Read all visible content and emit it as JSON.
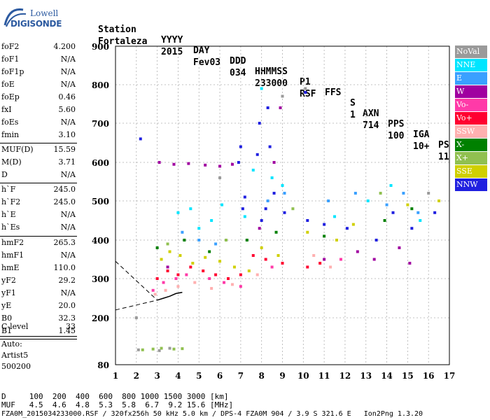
{
  "logo": {
    "line1": "Lowell",
    "line2": "DIGISONDE"
  },
  "header": {
    "labels": [
      {
        "text": "Station"
      },
      {
        "text": "YYYY"
      },
      {
        "text": "DAY"
      },
      {
        "text": "DDD"
      },
      {
        "text": "HHMMSS"
      },
      {
        "text": "P1"
      },
      {
        "text": "FFS"
      },
      {
        "text": "S"
      },
      {
        "text": "AXN"
      },
      {
        "text": "PPS"
      },
      {
        "text": "IGA"
      },
      {
        "text": "PS"
      }
    ],
    "values": [
      {
        "text": "Fortaleza"
      },
      {
        "text": "2015"
      },
      {
        "text": "Fev03"
      },
      {
        "text": "034"
      },
      {
        "text": "233000"
      },
      {
        "text": "RSF"
      },
      {
        "text": ""
      },
      {
        "text": "1"
      },
      {
        "text": "714"
      },
      {
        "text": "100"
      },
      {
        "text": "10+"
      },
      {
        "text": "11"
      }
    ]
  },
  "params": {
    "group1": [
      {
        "label": "foF2",
        "value": "4.200"
      },
      {
        "label": "foF1",
        "value": "N/A"
      },
      {
        "label": "foF1p",
        "value": "N/A"
      },
      {
        "label": "foE",
        "value": "N/A"
      },
      {
        "label": "foEp",
        "value": "0.46"
      },
      {
        "label": "fxI",
        "value": "5.60"
      },
      {
        "label": "foEs",
        "value": "N/A"
      },
      {
        "label": "fmin",
        "value": "3.10"
      }
    ],
    "group2": [
      {
        "label": "MUF(D)",
        "value": "15.59"
      },
      {
        "label": "M(D)",
        "value": "3.71"
      },
      {
        "label": "D",
        "value": "N/A"
      }
    ],
    "group3": [
      {
        "label": "h`F",
        "value": "245.0"
      },
      {
        "label": "h`F2",
        "value": "245.0"
      },
      {
        "label": "h`E",
        "value": "N/A"
      },
      {
        "label": "h`Es",
        "value": "N/A"
      }
    ],
    "group4": [
      {
        "label": "hmF2",
        "value": "265.3"
      },
      {
        "label": "hmF1",
        "value": "N/A"
      },
      {
        "label": "hmE",
        "value": "110.0"
      },
      {
        "label": "yF2",
        "value": "29.2"
      },
      {
        "label": "yF1",
        "value": "N/A"
      },
      {
        "label": "yE",
        "value": "20.0"
      },
      {
        "label": "B0",
        "value": "32.3"
      },
      {
        "label": "B1",
        "value": "1.45"
      }
    ],
    "group5": [
      {
        "label": "C-level",
        "value": "33"
      }
    ],
    "auto": {
      "line1": "Auto:",
      "line2": "Artist5",
      "line3": "500200"
    }
  },
  "legend": [
    {
      "label": "NoVal",
      "color": "#9a9a9a",
      "text_color": "#ffffff"
    },
    {
      "label": "NNE",
      "color": "#00e5ff",
      "text_color": "#ffffff"
    },
    {
      "label": "E",
      "color": "#3aa0ff",
      "text_color": "#ffffff"
    },
    {
      "label": "W",
      "color": "#a000a0",
      "text_color": "#ffffff"
    },
    {
      "label": "Vo-",
      "color": "#ff3aa8",
      "text_color": "#ffffff"
    },
    {
      "label": "Vo+",
      "color": "#ff0030",
      "text_color": "#ffffff"
    },
    {
      "label": "SSW",
      "color": "#ffb0b0",
      "text_color": "#ffffff"
    },
    {
      "label": "X-",
      "color": "#008000",
      "text_color": "#ffffff"
    },
    {
      "label": "X+",
      "color": "#90c050",
      "text_color": "#ffffff"
    },
    {
      "label": "SSE",
      "color": "#d0d000",
      "text_color": "#ffffff"
    },
    {
      "label": "NNW",
      "color": "#2020e0",
      "text_color": "#ffffff"
    }
  ],
  "chart_data": {
    "type": "scatter",
    "title": "",
    "xlabel": "",
    "ylabel": "",
    "x_ticks": [
      1,
      2,
      3,
      4,
      5,
      6,
      7,
      8,
      9,
      10,
      11,
      12,
      13,
      14,
      15,
      16,
      17
    ],
    "y_ticks": [
      80,
      200,
      300,
      400,
      500,
      600,
      700,
      800,
      900
    ],
    "xlim": [
      1,
      17
    ],
    "ylim": [
      80,
      900
    ],
    "grid": "dashed",
    "legend_position": "right",
    "series": [
      {
        "name": "NNW",
        "color": "#2020e0",
        "points": [
          [
            6.9,
            600
          ],
          [
            7.0,
            640
          ],
          [
            7.1,
            480
          ],
          [
            7.2,
            510
          ],
          [
            7.8,
            620
          ],
          [
            7.9,
            700
          ],
          [
            8.0,
            450
          ],
          [
            8.2,
            480
          ],
          [
            8.4,
            640
          ],
          [
            8.6,
            520
          ],
          [
            9.1,
            470
          ],
          [
            10.2,
            450
          ],
          [
            11.0,
            440
          ],
          [
            12.1,
            430
          ],
          [
            13.5,
            400
          ],
          [
            14.3,
            470
          ],
          [
            15.2,
            430
          ],
          [
            16.3,
            470
          ],
          [
            2.2,
            660
          ],
          [
            8.3,
            740
          ],
          [
            10.1,
            780
          ]
        ]
      },
      {
        "name": "W",
        "color": "#a000a0",
        "points": [
          [
            3.1,
            600
          ],
          [
            3.8,
            595
          ],
          [
            4.5,
            597
          ],
          [
            5.3,
            593
          ],
          [
            6.0,
            590
          ],
          [
            6.6,
            595
          ],
          [
            7.9,
            430
          ],
          [
            8.6,
            600
          ],
          [
            8.9,
            740
          ],
          [
            11.0,
            350
          ],
          [
            12.6,
            370
          ],
          [
            13.4,
            350
          ],
          [
            14.6,
            380
          ],
          [
            15.1,
            340
          ],
          [
            3.5,
            330
          ]
        ]
      },
      {
        "name": "NNE",
        "color": "#00e5ff",
        "points": [
          [
            4.0,
            470
          ],
          [
            4.6,
            480
          ],
          [
            5.0,
            430
          ],
          [
            5.6,
            450
          ],
          [
            6.1,
            490
          ],
          [
            7.2,
            460
          ],
          [
            7.6,
            580
          ],
          [
            8.0,
            790
          ],
          [
            8.5,
            560
          ],
          [
            9.0,
            540
          ],
          [
            11.5,
            460
          ],
          [
            13.1,
            500
          ],
          [
            14.2,
            540
          ],
          [
            15.6,
            450
          ]
        ]
      },
      {
        "name": "E",
        "color": "#3aa0ff",
        "points": [
          [
            4.2,
            420
          ],
          [
            5.0,
            400
          ],
          [
            5.8,
            390
          ],
          [
            8.3,
            500
          ],
          [
            9.1,
            520
          ],
          [
            11.2,
            500
          ],
          [
            12.5,
            520
          ],
          [
            14.0,
            490
          ],
          [
            14.8,
            520
          ],
          [
            15.5,
            470
          ]
        ]
      },
      {
        "name": "SSE",
        "color": "#d0d000",
        "points": [
          [
            3.2,
            350
          ],
          [
            3.6,
            370
          ],
          [
            4.1,
            360
          ],
          [
            4.7,
            340
          ],
          [
            5.3,
            355
          ],
          [
            6.0,
            345
          ],
          [
            6.7,
            330
          ],
          [
            7.4,
            320
          ],
          [
            8.0,
            380
          ],
          [
            8.8,
            360
          ],
          [
            10.2,
            420
          ],
          [
            11.6,
            400
          ],
          [
            12.4,
            440
          ],
          [
            15.0,
            490
          ],
          [
            16.5,
            500
          ]
        ]
      },
      {
        "name": "Vo+",
        "color": "#ff0030",
        "points": [
          [
            3.0,
            300
          ],
          [
            3.5,
            320
          ],
          [
            4.0,
            310
          ],
          [
            4.6,
            330
          ],
          [
            5.2,
            320
          ],
          [
            5.8,
            310
          ],
          [
            6.4,
            300
          ],
          [
            7.0,
            310
          ],
          [
            7.6,
            360
          ],
          [
            8.2,
            350
          ],
          [
            9.0,
            340
          ],
          [
            10.2,
            330
          ],
          [
            10.8,
            340
          ]
        ]
      },
      {
        "name": "Vo-",
        "color": "#ff3aa8",
        "points": [
          [
            2.8,
            270
          ],
          [
            3.3,
            290
          ],
          [
            3.9,
            300
          ],
          [
            4.4,
            310
          ],
          [
            5.5,
            300
          ],
          [
            6.2,
            290
          ],
          [
            7.0,
            280
          ],
          [
            8.5,
            330
          ],
          [
            11.8,
            350
          ]
        ]
      },
      {
        "name": "SSW",
        "color": "#ffb0b0",
        "points": [
          [
            2.9,
            260
          ],
          [
            3.4,
            270
          ],
          [
            4.0,
            280
          ],
          [
            4.8,
            290
          ],
          [
            5.6,
            275
          ],
          [
            6.6,
            285
          ],
          [
            7.8,
            310
          ],
          [
            10.5,
            360
          ],
          [
            11.3,
            330
          ]
        ]
      },
      {
        "name": "X-",
        "color": "#008000",
        "points": [
          [
            3.0,
            380
          ],
          [
            4.3,
            400
          ],
          [
            5.5,
            370
          ],
          [
            7.3,
            400
          ],
          [
            8.7,
            420
          ],
          [
            11.0,
            410
          ],
          [
            13.9,
            450
          ],
          [
            15.2,
            480
          ]
        ]
      },
      {
        "name": "X+",
        "color": "#90c050",
        "points": [
          [
            2.3,
            118
          ],
          [
            2.8,
            120
          ],
          [
            3.2,
            122
          ],
          [
            3.8,
            120
          ],
          [
            4.2,
            121
          ],
          [
            3.5,
            390
          ],
          [
            6.3,
            400
          ],
          [
            9.5,
            480
          ],
          [
            13.7,
            520
          ]
        ]
      },
      {
        "name": "NoVal",
        "color": "#9a9a9a",
        "points": [
          [
            2.0,
            200
          ],
          [
            2.1,
            118
          ],
          [
            3.1,
            116
          ],
          [
            3.6,
            122
          ],
          [
            6.0,
            560
          ],
          [
            9.0,
            770
          ],
          [
            10.1,
            790
          ],
          [
            16.0,
            520
          ]
        ]
      }
    ],
    "profile": {
      "points": [
        [
          3.0,
          245
        ],
        [
          3.3,
          250
        ],
        [
          3.6,
          255
        ],
        [
          3.9,
          262
        ],
        [
          4.2,
          265
        ]
      ]
    }
  },
  "bottom": {
    "d_row": "D     100  200  400  600  800 1000 1500 3000 [km]",
    "muf_row": "MUF   4.5  4.6  4.8  5.3  5.8  6.7  9.2 15.6 [MHz]",
    "footer": "FZA0M_2015034233000.RSF / 320fx256h 50 kHz 5.0 km / DPS-4 FZA0M 904 / 3.9 S 321.6 E   Ion2Png 1.3.20"
  }
}
